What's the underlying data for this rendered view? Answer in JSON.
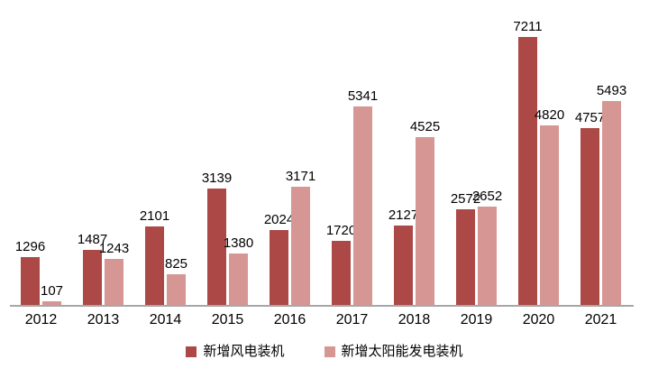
{
  "chart_data": {
    "type": "bar",
    "title": "",
    "xlabel": "",
    "ylabel": "",
    "categories": [
      "2012",
      "2013",
      "2014",
      "2015",
      "2016",
      "2017",
      "2018",
      "2019",
      "2020",
      "2021"
    ],
    "series": [
      {
        "name": "新增风电装机",
        "color": "#ac4846",
        "values": [
          1296,
          1487,
          2101,
          3139,
          2024,
          1720,
          2127,
          2572,
          7211,
          4757
        ]
      },
      {
        "name": "新增太阳能发电装机",
        "color": "#d59694",
        "values": [
          107,
          1243,
          825,
          1380,
          3171,
          5341,
          4525,
          2652,
          4820,
          5493
        ]
      }
    ],
    "ylim": [
      0,
      7600
    ],
    "grid": false,
    "y_axis_visible": false,
    "data_labels": true,
    "data_label_color": "#000000",
    "axis_line_color": "#a6a6a6",
    "tick_label_color": "#000000",
    "legend_position": "bottom",
    "background_color": "#ffffff"
  }
}
